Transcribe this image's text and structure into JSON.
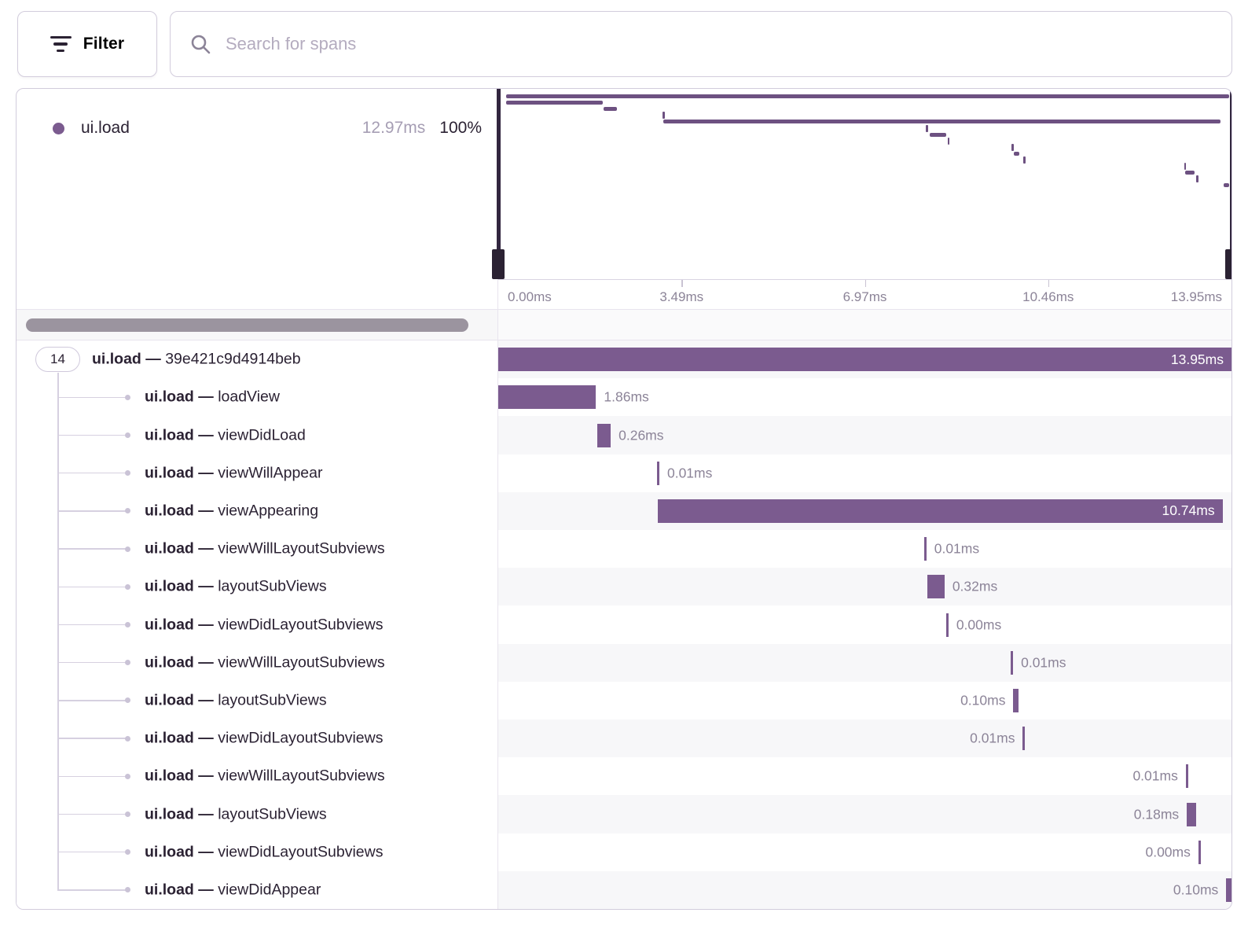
{
  "toolbar": {
    "filter_label": "Filter",
    "search_placeholder": "Search for spans"
  },
  "legend": {
    "op": "ui.load",
    "duration": "12.97ms",
    "percent": "100%"
  },
  "axis": {
    "ticks": [
      "0.00ms",
      "3.49ms",
      "6.97ms",
      "10.46ms",
      "13.95ms"
    ]
  },
  "trace": {
    "total_ms": 13.95,
    "root_badge": "14",
    "rows": [
      {
        "op": "ui.load",
        "name": "39e421c9d4914beb",
        "start_ms": 0.0,
        "duration_ms": 13.95,
        "duration_label": "13.95ms",
        "label_pos": "inside",
        "root": true
      },
      {
        "op": "ui.load",
        "name": "loadView",
        "start_ms": 0.0,
        "duration_ms": 1.86,
        "duration_label": "1.86ms",
        "label_pos": "right"
      },
      {
        "op": "ui.load",
        "name": "viewDidLoad",
        "start_ms": 1.88,
        "duration_ms": 0.26,
        "duration_label": "0.26ms",
        "label_pos": "right"
      },
      {
        "op": "ui.load",
        "name": "viewWillAppear",
        "start_ms": 3.02,
        "duration_ms": 0.01,
        "duration_label": "0.01ms",
        "label_pos": "right"
      },
      {
        "op": "ui.load",
        "name": "viewAppearing",
        "start_ms": 3.04,
        "duration_ms": 10.74,
        "duration_label": "10.74ms",
        "label_pos": "inside"
      },
      {
        "op": "ui.load",
        "name": "viewWillLayoutSubviews",
        "start_ms": 8.1,
        "duration_ms": 0.01,
        "duration_label": "0.01ms",
        "label_pos": "right"
      },
      {
        "op": "ui.load",
        "name": "layoutSubViews",
        "start_ms": 8.17,
        "duration_ms": 0.32,
        "duration_label": "0.32ms",
        "label_pos": "right"
      },
      {
        "op": "ui.load",
        "name": "viewDidLayoutSubviews",
        "start_ms": 8.52,
        "duration_ms": 0.0,
        "duration_label": "0.00ms",
        "label_pos": "right"
      },
      {
        "op": "ui.load",
        "name": "viewWillLayoutSubviews",
        "start_ms": 9.75,
        "duration_ms": 0.01,
        "duration_label": "0.01ms",
        "label_pos": "right"
      },
      {
        "op": "ui.load",
        "name": "layoutSubViews",
        "start_ms": 9.8,
        "duration_ms": 0.1,
        "duration_label": "0.10ms",
        "label_pos": "left"
      },
      {
        "op": "ui.load",
        "name": "viewDidLayoutSubviews",
        "start_ms": 9.98,
        "duration_ms": 0.01,
        "duration_label": "0.01ms",
        "label_pos": "left"
      },
      {
        "op": "ui.load",
        "name": "viewWillLayoutSubviews",
        "start_ms": 13.08,
        "duration_ms": 0.01,
        "duration_label": "0.01ms",
        "label_pos": "left"
      },
      {
        "op": "ui.load",
        "name": "layoutSubViews",
        "start_ms": 13.1,
        "duration_ms": 0.18,
        "duration_label": "0.18ms",
        "label_pos": "left"
      },
      {
        "op": "ui.load",
        "name": "viewDidLayoutSubviews",
        "start_ms": 13.32,
        "duration_ms": 0.0,
        "duration_label": "0.00ms",
        "label_pos": "left"
      },
      {
        "op": "ui.load",
        "name": "viewDidAppear",
        "start_ms": 13.85,
        "duration_ms": 0.1,
        "duration_label": "0.10ms",
        "label_pos": "left"
      }
    ]
  },
  "colors": {
    "bar": "#7b5b8f",
    "mini_bar": "#6d5181",
    "handle": "#32263f",
    "text_dark": "#2b2233",
    "text_muted": "#8c8498",
    "row_alt": "#f7f7f9"
  }
}
